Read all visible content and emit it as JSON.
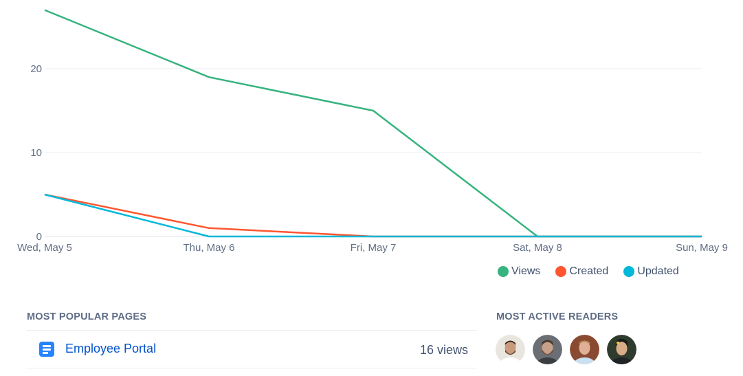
{
  "chart_data": {
    "type": "line",
    "categories": [
      "Wed, May 5",
      "Thu, May 6",
      "Fri, May 7",
      "Sat, May 8",
      "Sun, May 9"
    ],
    "series": [
      {
        "name": "Views",
        "values": [
          27,
          19,
          15,
          0,
          0
        ],
        "color": "#36b37e"
      },
      {
        "name": "Created",
        "values": [
          5,
          1,
          0,
          0,
          0
        ],
        "color": "#ff5630"
      },
      {
        "name": "Updated",
        "values": [
          5,
          0,
          0,
          0,
          0
        ],
        "color": "#00b8d9"
      }
    ],
    "y_ticks": [
      0,
      10,
      20
    ],
    "ylim": [
      0,
      28
    ],
    "grid": true,
    "legend_position": "bottom-right"
  },
  "legend": {
    "views": "Views",
    "created": "Created",
    "updated": "Updated"
  },
  "popular_pages": {
    "title": "MOST POPULAR PAGES",
    "items": [
      {
        "name": "Employee Portal",
        "views": "16 views",
        "icon": "page-icon"
      }
    ]
  },
  "active_readers": {
    "title": "MOST ACTIVE READERS",
    "avatars": [
      "avatar-1",
      "avatar-2",
      "avatar-3",
      "avatar-4"
    ]
  }
}
